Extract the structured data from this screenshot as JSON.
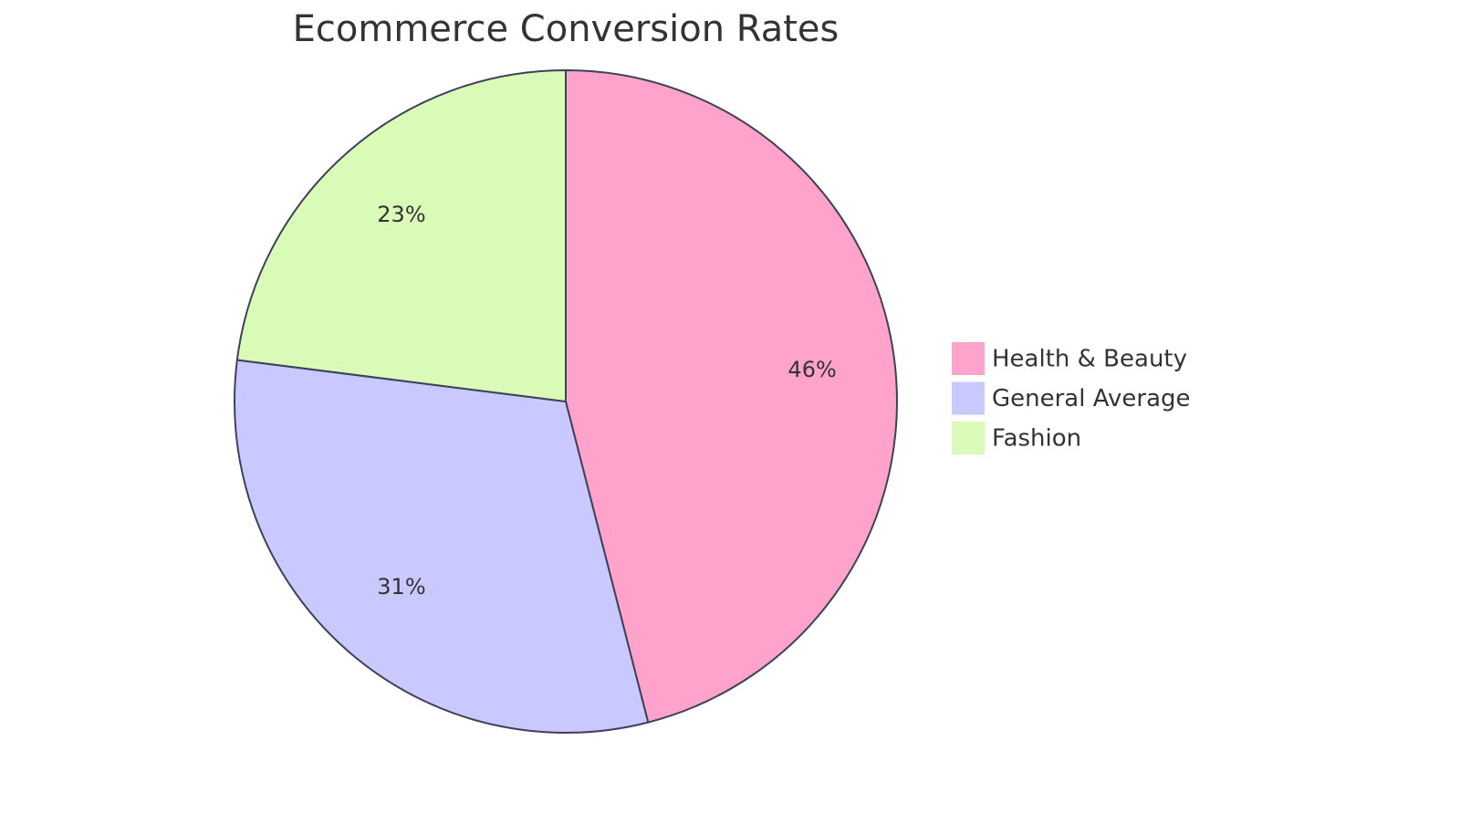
{
  "chart_data": {
    "type": "pie",
    "title": "Ecommerce Conversion Rates",
    "categories": [
      "Health & Beauty",
      "General Average",
      "Fashion"
    ],
    "values": [
      46,
      31,
      23
    ],
    "value_labels": [
      "46%",
      "31%",
      "23%"
    ],
    "colors": [
      "#ffa3cc",
      "#c9c9ff",
      "#dafab8"
    ],
    "legend": "right"
  }
}
